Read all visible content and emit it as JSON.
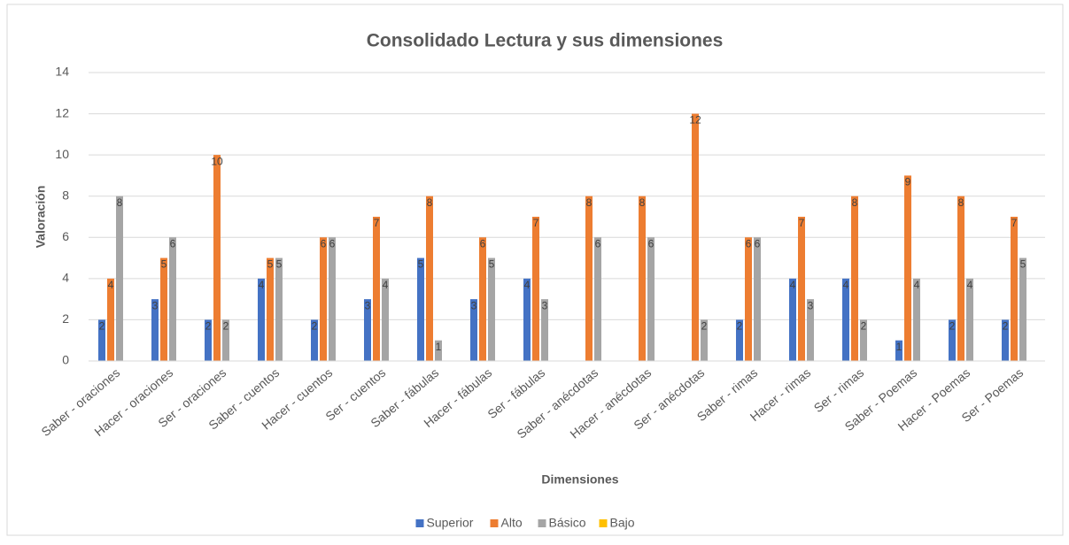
{
  "chart_data": {
    "type": "bar",
    "title": "Consolidado Lectura y sus dimensiones",
    "x_label": "Dimensiones",
    "y_label": "Valoración",
    "categories": [
      "Saber - oraciones",
      "Hacer - oraciones",
      "Ser - oraciones",
      "Saber - cuentos",
      "Hacer - cuentos",
      "Ser - cuentos",
      "Saber - fábulas",
      "Hacer - fábulas",
      "Ser - fábulas",
      "Saber - anécdotas",
      "Hacer - anécdotas",
      "Ser - anécdotas",
      "Saber - rimas",
      "Hacer - rimas",
      "Ser - rimas",
      "Saber - Poemas",
      "Hacer - Poemas",
      "Ser - Poemas"
    ],
    "series": [
      {
        "name": "Superior",
        "color": "#4472c4",
        "values": [
          2,
          3,
          2,
          4,
          2,
          3,
          5,
          3,
          4,
          null,
          null,
          null,
          2,
          4,
          4,
          1,
          2,
          2
        ]
      },
      {
        "name": "Alto",
        "color": "#ed7d31",
        "values": [
          4,
          5,
          10,
          5,
          6,
          7,
          8,
          6,
          7,
          8,
          8,
          12,
          6,
          7,
          8,
          9,
          8,
          7
        ]
      },
      {
        "name": "Básico",
        "color": "#a5a5a5",
        "values": [
          8,
          6,
          2,
          5,
          6,
          4,
          1,
          5,
          3,
          6,
          6,
          2,
          6,
          3,
          2,
          4,
          4,
          5
        ]
      },
      {
        "name": "Bajo",
        "color": "#ffc000",
        "values": [
          null,
          null,
          null,
          null,
          null,
          null,
          null,
          null,
          null,
          null,
          null,
          null,
          null,
          null,
          null,
          null,
          null,
          null
        ]
      }
    ],
    "ylim": [
      0,
      14
    ],
    "yticks": [
      0,
      2,
      4,
      6,
      8,
      10,
      12,
      14
    ],
    "grid": true,
    "legend": "bottom"
  }
}
